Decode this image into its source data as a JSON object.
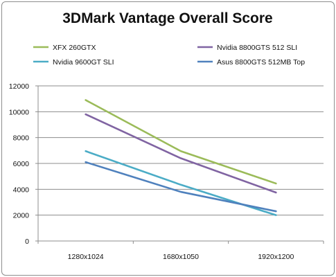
{
  "chart_data": {
    "type": "line",
    "title": "3DMark Vantage Overall Score",
    "xlabel": "",
    "ylabel": "",
    "categories": [
      "1280x1024",
      "1680x1050",
      "1920x1200"
    ],
    "ylim": [
      0,
      12000
    ],
    "yticks": [
      0,
      2000,
      4000,
      6000,
      8000,
      10000,
      12000
    ],
    "grid": "horizontal",
    "legend": "top",
    "series": [
      {
        "name": "XFX 260GTX",
        "color": "#9BBB59",
        "values": [
          10900,
          6950,
          4450
        ]
      },
      {
        "name": "Nvidia 8800GTS 512 SLI",
        "color": "#8064A2",
        "values": [
          9800,
          6400,
          3750
        ]
      },
      {
        "name": "Nvidia 9600GT SLI",
        "color": "#4BACC6",
        "values": [
          6950,
          4350,
          2000
        ]
      },
      {
        "name": "Asus 8800GTS 512MB Top",
        "color": "#4F81BD",
        "values": [
          6100,
          3800,
          2300
        ]
      }
    ]
  }
}
